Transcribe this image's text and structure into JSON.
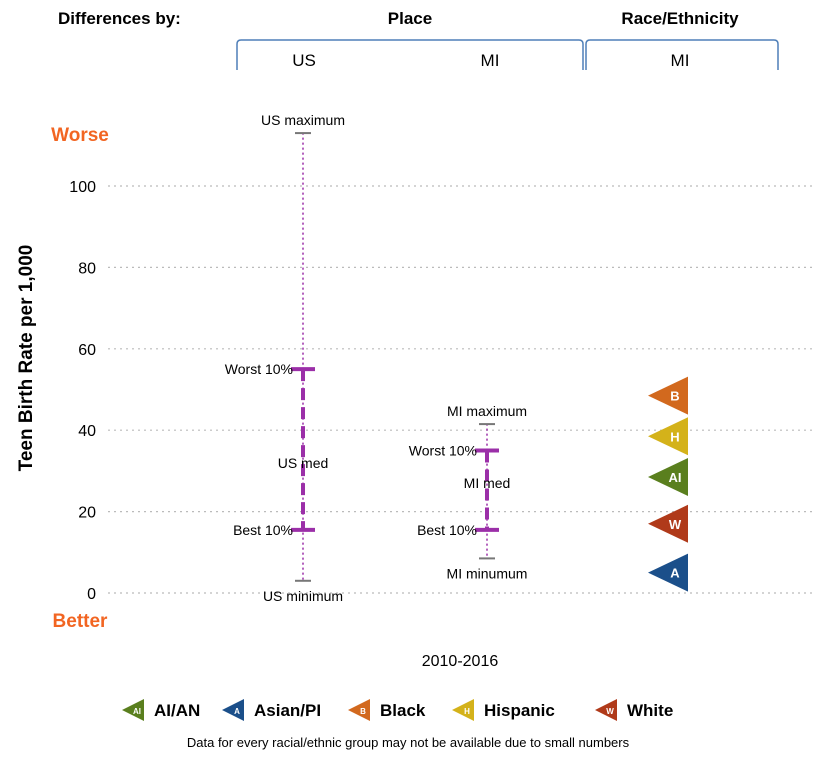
{
  "header": {
    "differences_by": "Differences by:",
    "place": "Place",
    "race_ethnicity": "Race/Ethnicity",
    "col_us": "US",
    "col_mi": "MI",
    "col_race_mi": "MI"
  },
  "chart_data": {
    "type": "range-comparison",
    "ylabel": "Teen Birth Rate per 1,000",
    "xlabel": "2010-2016",
    "ylim": [
      0,
      110
    ],
    "yticks": [
      0,
      20,
      40,
      60,
      80,
      100
    ],
    "grid": true,
    "direction_labels": {
      "top": "Worse",
      "bottom": "Better"
    },
    "places": [
      {
        "id": "us",
        "label_max": "US maximum",
        "max": 113,
        "label_worst": "Worst 10%",
        "worst10": 55,
        "label_median": "US med",
        "median": 32,
        "label_best": "Best 10%",
        "best10": 15.5,
        "label_min": "US minimum",
        "min": 3
      },
      {
        "id": "mi",
        "label_max": "MI maximum",
        "max": 41.5,
        "label_worst": "Worst 10%",
        "worst10": 35,
        "label_median": "MI med",
        "median": 27,
        "label_best": "Best 10%",
        "best10": 15.5,
        "label_min": "MI minumum",
        "min": 8.5
      }
    ],
    "race_groups": [
      {
        "abbr": "B",
        "name": "Black",
        "value": 48.5,
        "color": "#D2691E"
      },
      {
        "abbr": "H",
        "name": "Hispanic",
        "value": 38.5,
        "color": "#D4B21A"
      },
      {
        "abbr": "AI",
        "name": "AI/AN",
        "value": 28.5,
        "color": "#5A7F1E"
      },
      {
        "abbr": "W",
        "name": "White",
        "value": 17,
        "color": "#B03A1A"
      },
      {
        "abbr": "A",
        "name": "Asian/PI",
        "value": 5,
        "color": "#1B4F8A"
      }
    ]
  },
  "legend": {
    "items": [
      {
        "abbr": "AI",
        "label": "AI/AN",
        "color": "#5A7F1E"
      },
      {
        "abbr": "A",
        "label": "Asian/PI",
        "color": "#1B4F8A"
      },
      {
        "abbr": "B",
        "label": "Black",
        "color": "#D2691E"
      },
      {
        "abbr": "H",
        "label": "Hispanic",
        "color": "#D4B21A"
      },
      {
        "abbr": "W",
        "label": "White",
        "color": "#B03A1A"
      }
    ],
    "footnote": "Data for every racial/ethnic group may not be available due to small numbers"
  },
  "colors": {
    "range": "#9B2FA8",
    "accent": "#F26522",
    "bracket": "#4F7FB8",
    "grid": "#bbbbbb"
  }
}
